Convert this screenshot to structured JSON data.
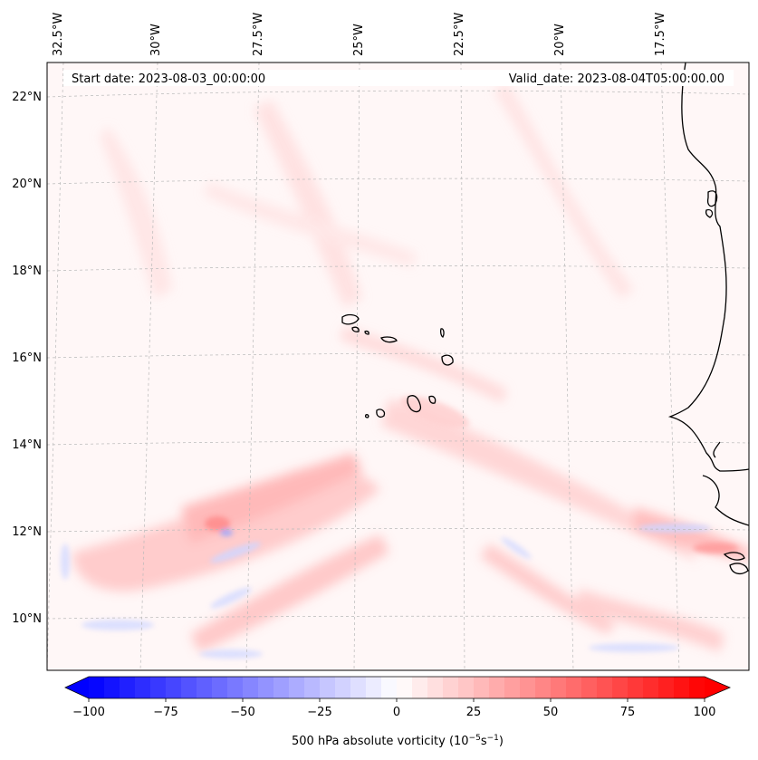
{
  "map": {
    "start_label": "Start date: 2023-08-03_00:00:00",
    "valid_label": "Valid_date: 2023-08-04T05:00:00.00",
    "lon_labels": [
      "32.5°W",
      "30°W",
      "27.5°W",
      "25°W",
      "22.5°W",
      "20°W",
      "17.5°W"
    ],
    "lat_labels": [
      "22°N",
      "20°N",
      "18°N",
      "16°N",
      "14°N",
      "12°N",
      "10°N"
    ],
    "field": "500 hPa absolute vorticity"
  },
  "colorbar": {
    "label": "500 hPa absolute vorticity (10",
    "label_exp1": "−5",
    "label_mid": "s",
    "label_exp2": "−1",
    "label_close": ")",
    "ticks": [
      "−100",
      "−75",
      "−50",
      "−25",
      "0",
      "25",
      "50",
      "75",
      "100"
    ],
    "min": -100,
    "max": 100,
    "low_color": "#0000ff",
    "high_color": "#ff0000",
    "mid_color": "#ffffff"
  }
}
